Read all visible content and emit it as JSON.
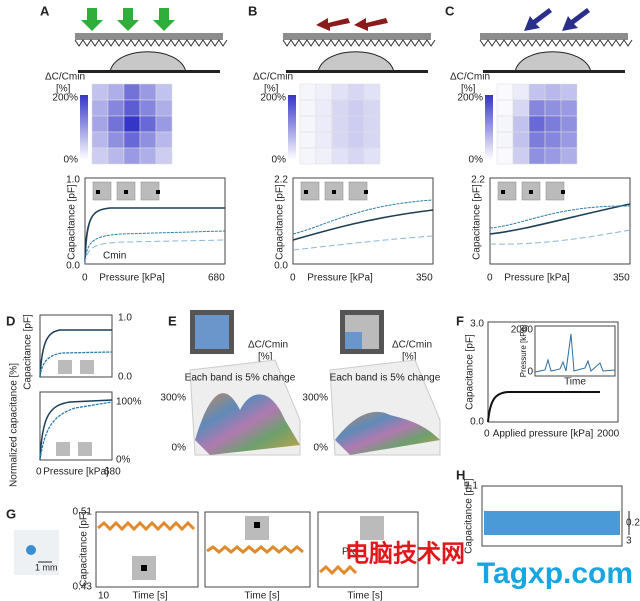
{
  "panels": {
    "A": {
      "letter": "A",
      "legend_title": "ΔC/Cmin",
      "legend_unit": "[%]",
      "scale_max": {
        "value": 200,
        "label": "200%"
      },
      "scale_min": {
        "value": 0,
        "label": "0%"
      },
      "heatmap": [
        [
          60,
          80,
          140,
          100,
          60
        ],
        [
          80,
          120,
          160,
          120,
          80
        ],
        [
          90,
          140,
          200,
          150,
          100
        ],
        [
          70,
          110,
          150,
          110,
          70
        ],
        [
          50,
          70,
          100,
          80,
          50
        ]
      ],
      "y_max": "1.0",
      "y_min": "0.0",
      "y_label": "Capacitance [pF]",
      "annotation": "Cmin",
      "x_min": "0",
      "x_label": "Pressure [kPa]",
      "x_max": "680"
    },
    "B": {
      "letter": "B",
      "legend_title": "ΔC/Cmin",
      "legend_unit": "[%]",
      "scale_max": {
        "value": 200,
        "label": "200%"
      },
      "scale_min": {
        "value": 0,
        "label": "0%"
      },
      "heatmap": [
        [
          10,
          15,
          30,
          40,
          30
        ],
        [
          10,
          20,
          40,
          50,
          40
        ],
        [
          10,
          20,
          40,
          50,
          40
        ],
        [
          10,
          20,
          40,
          50,
          40
        ],
        [
          10,
          15,
          30,
          40,
          30
        ]
      ],
      "y_max": "2.2",
      "y_min": "0.0",
      "y_label": "Capacitance [pF]",
      "x_min": "0",
      "x_label": "Pressure [kPa]",
      "x_max": "350"
    },
    "C": {
      "letter": "C",
      "legend_title": "ΔC/Cmin",
      "legend_unit": "[%]",
      "scale_max": {
        "value": 200,
        "label": "200%"
      },
      "scale_min": {
        "value": 0,
        "label": "0%"
      },
      "heatmap": [
        [
          5,
          20,
          60,
          70,
          60
        ],
        [
          5,
          40,
          120,
          110,
          100
        ],
        [
          10,
          60,
          150,
          130,
          110
        ],
        [
          10,
          60,
          130,
          120,
          100
        ],
        [
          5,
          50,
          110,
          100,
          80
        ]
      ],
      "y_max": "2.2",
      "y_label": "Capacitance [pF]",
      "x_min": "0",
      "x_label": "Pressure [kPa]",
      "x_max": "350"
    }
  },
  "D": {
    "letter": "D",
    "top_y_label": "Capacitance [pF]",
    "top_max": "1.0",
    "top_min": "0.0",
    "bottom_y_label": "Normalized capacitance [%]",
    "bottom_max": "100%",
    "bottom_min": "0%",
    "x_min": "0",
    "x_label": "Pressure [kPa]",
    "x_max": "680"
  },
  "E": {
    "letter": "E",
    "left": {
      "legend_title": "ΔC/Cmin",
      "legend_unit": "[%]",
      "note": "Each band is 5% change",
      "z_max": "300%",
      "z_min": "0%"
    },
    "right": {
      "legend_title": "ΔC/Cmin",
      "legend_unit": "[%]",
      "note": "Each band is 5% change",
      "z_max": "300%",
      "z_min": "0%"
    }
  },
  "F": {
    "letter": "F",
    "y_max": "3.0",
    "y_min": "0.0",
    "y_label": "Capacitance [pF]",
    "x_min": "0",
    "x_label": "Applied pressure [kPa]",
    "x_max": "2000",
    "inset": {
      "y_max": "2000",
      "y_min": "0",
      "y_label": "Pressure [kPa]",
      "x_label": "Time"
    }
  },
  "G": {
    "letter": "G",
    "scale_bar": "1 mm",
    "y_max": "0.51",
    "y_min": "0.43",
    "y_label": "Capacitance [pF]",
    "x_start": "10",
    "x_labels": [
      "Time [s]",
      "Time [s]",
      "Time [s]"
    ],
    "partial_label": "Pre"
  },
  "H": {
    "letter": "H",
    "y_max": "1.1",
    "y_label": "Capacitance [pF]",
    "annotation_1": "0.2",
    "annotation_2": "3"
  },
  "watermark": {
    "chinese": "电脑技术网",
    "site": "Tagxp.com"
  }
}
